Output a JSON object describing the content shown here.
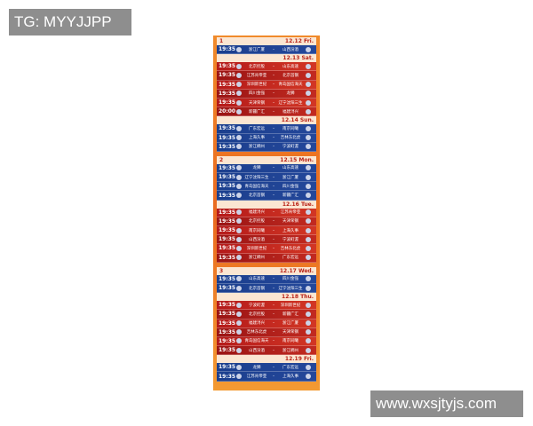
{
  "watermarks": {
    "top": "TG: MYYJJPP",
    "bottom": "www.wxsjtyjs.com"
  },
  "colors": {
    "weekday_row": "#1b3f8e",
    "weekend_row": "#c22a20",
    "background": "#ea6a1f"
  },
  "rounds": [
    {
      "round": "1",
      "days": [
        {
          "date": "12.12 Fri.",
          "style": "blue",
          "games": [
            [
              "19:35",
              "浙江广厦",
              "山西汾酒"
            ]
          ]
        },
        {
          "date": "12.13 Sat.",
          "style": "red",
          "games": [
            [
              "19:35",
              "北京控股",
              "山东高速"
            ],
            [
              "19:35",
              "江苏肯帝亚",
              "北京首钢"
            ],
            [
              "19:35",
              "深圳新世纪",
              "青岛国信海天"
            ],
            [
              "19:35",
              "四川金强",
              "龙狮"
            ],
            [
              "19:35",
              "天津荣钢",
              "辽宁沈阳三生"
            ],
            [
              "20:00",
              "新疆广汇",
              "福建浔兴"
            ]
          ]
        },
        {
          "date": "12.14 Sun.",
          "style": "blue",
          "games": [
            [
              "19:35",
              "广东宏远",
              "南京同曦"
            ],
            [
              "19:35",
              "上海久事",
              "吉林东北虎"
            ],
            [
              "19:35",
              "浙江稠州",
              "宁波町渥"
            ]
          ]
        }
      ]
    },
    {
      "round": "2",
      "days": [
        {
          "date": "12.15 Mon.",
          "style": "blue",
          "games": [
            [
              "19:35",
              "龙狮",
              "山东高速"
            ],
            [
              "19:35",
              "辽宁沈阳三生",
              "浙江广厦"
            ],
            [
              "19:35",
              "青岛国信海天",
              "四川金强"
            ],
            [
              "19:35",
              "北京首钢",
              "新疆广汇"
            ]
          ]
        },
        {
          "date": "12.16 Tue.",
          "style": "red",
          "games": [
            [
              "19:35",
              "福建浔兴",
              "江苏肯帝亚"
            ],
            [
              "19:35",
              "北京控股",
              "天津荣钢"
            ],
            [
              "19:35",
              "南京同曦",
              "上海久事"
            ],
            [
              "19:35",
              "山西汾酒",
              "宁波町渥"
            ],
            [
              "19:35",
              "深圳新世纪",
              "吉林东北虎"
            ],
            [
              "19:35",
              "浙江稠州",
              "广东宏远"
            ]
          ]
        }
      ]
    },
    {
      "round": "3",
      "days": [
        {
          "date": "12.17 Wed.",
          "style": "blue",
          "games": [
            [
              "19:35",
              "山东高速",
              "四川金强"
            ],
            [
              "19:35",
              "北京首钢",
              "辽宁沈阳三生"
            ]
          ]
        },
        {
          "date": "12.18 Thu.",
          "style": "red",
          "games": [
            [
              "19:35",
              "宁波町渥",
              "深圳新世纪"
            ],
            [
              "19:35",
              "北京控股",
              "新疆广汇"
            ],
            [
              "19:35",
              "福建浔兴",
              "浙江广厦"
            ],
            [
              "19:35",
              "吉林东北虎",
              "天津荣钢"
            ],
            [
              "19:35",
              "青岛国信海天",
              "南京同曦"
            ],
            [
              "19:35",
              "山西汾酒",
              "浙江稠州"
            ]
          ]
        },
        {
          "date": "12.19 Fri.",
          "style": "blue",
          "games": [
            [
              "19:35",
              "龙狮",
              "广东宏远"
            ],
            [
              "19:35",
              "江苏肯帝亚",
              "上海久事"
            ]
          ]
        }
      ]
    }
  ],
  "vs_label": "-"
}
